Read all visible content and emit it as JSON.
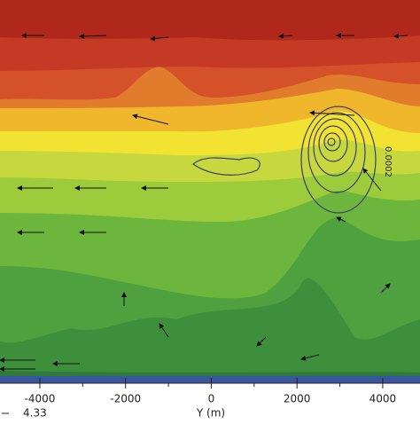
{
  "chart_data": {
    "type": "contour",
    "xlabel": "Y (m)",
    "xlim": [
      -4930,
      4870
    ],
    "xticks": [
      -4000,
      -2000,
      0,
      2000,
      4000
    ],
    "xminor_ticks": [
      -3000,
      -1000,
      1000,
      3000
    ],
    "contour_label": "0.0002",
    "vector_label": "4.33"
  }
}
